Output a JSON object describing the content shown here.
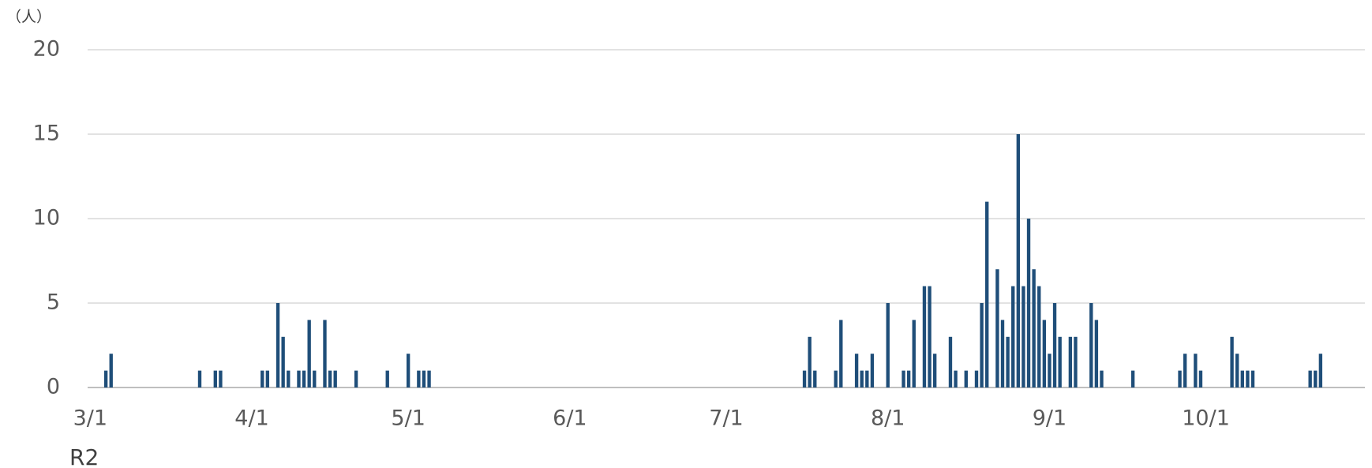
{
  "chart_data": {
    "type": "bar",
    "y_unit": "（人）",
    "x_note": "R2",
    "color": "#1f4e79",
    "grid": true,
    "ylim": [
      0,
      20
    ],
    "yticks": [
      0,
      5,
      10,
      15,
      20
    ],
    "categories": [
      "3/1",
      null,
      null,
      null,
      null,
      null,
      null,
      null,
      null,
      null,
      null,
      null,
      null,
      null,
      null,
      null,
      null,
      null,
      null,
      null,
      null,
      null,
      null,
      null,
      null,
      null,
      null,
      null,
      null,
      null,
      null,
      "4/1",
      null,
      null,
      null,
      null,
      null,
      null,
      null,
      null,
      null,
      null,
      null,
      null,
      null,
      null,
      null,
      null,
      null,
      null,
      null,
      null,
      null,
      null,
      null,
      null,
      null,
      null,
      null,
      null,
      null,
      "5/1",
      null,
      null,
      null,
      null,
      null,
      null,
      null,
      null,
      null,
      null,
      null,
      null,
      null,
      null,
      null,
      null,
      null,
      null,
      null,
      null,
      null,
      null,
      null,
      null,
      null,
      null,
      null,
      null,
      null,
      null,
      "6/1",
      null,
      null,
      null,
      null,
      null,
      null,
      null,
      null,
      null,
      null,
      null,
      null,
      null,
      null,
      null,
      null,
      null,
      null,
      null,
      null,
      null,
      null,
      null,
      null,
      null,
      null,
      null,
      null,
      null,
      "7/1",
      null,
      null,
      null,
      null,
      null,
      null,
      null,
      null,
      null,
      null,
      null,
      null,
      null,
      null,
      null,
      null,
      null,
      null,
      null,
      null,
      null,
      null,
      null,
      null,
      null,
      null,
      null,
      null,
      null,
      null,
      "8/1",
      null,
      null,
      null,
      null,
      null,
      null,
      null,
      null,
      null,
      null,
      null,
      null,
      null,
      null,
      null,
      null,
      null,
      null,
      null,
      null,
      null,
      null,
      null,
      null,
      null,
      null,
      null,
      null,
      null,
      null,
      "9/1",
      null,
      null,
      null,
      null,
      null,
      null,
      null,
      null,
      null,
      null,
      null,
      null,
      null,
      null,
      null,
      null,
      null,
      null,
      null,
      null,
      null,
      null,
      null,
      null,
      null,
      null,
      null,
      null,
      null,
      "10/1",
      null,
      null,
      null,
      null,
      null,
      null,
      null,
      null,
      null,
      null,
      null,
      null,
      null,
      null,
      null,
      null,
      null,
      null,
      null,
      null,
      null,
      null,
      null,
      null,
      null,
      null,
      null,
      null,
      null,
      null
    ],
    "values": [
      0,
      0,
      0,
      1,
      2,
      0,
      0,
      0,
      0,
      0,
      0,
      0,
      0,
      0,
      0,
      0,
      0,
      0,
      0,
      0,
      0,
      1,
      0,
      0,
      1,
      1,
      0,
      0,
      0,
      0,
      0,
      0,
      0,
      1,
      1,
      0,
      5,
      3,
      1,
      0,
      1,
      1,
      4,
      1,
      0,
      4,
      1,
      1,
      0,
      0,
      0,
      1,
      0,
      0,
      0,
      0,
      0,
      1,
      0,
      0,
      0,
      2,
      0,
      1,
      1,
      1,
      0,
      0,
      0,
      0,
      0,
      0,
      0,
      0,
      0,
      0,
      0,
      0,
      0,
      0,
      0,
      0,
      0,
      0,
      0,
      0,
      0,
      0,
      0,
      0,
      0,
      0,
      0,
      0,
      0,
      0,
      0,
      0,
      0,
      0,
      0,
      0,
      0,
      0,
      0,
      0,
      0,
      0,
      0,
      0,
      0,
      0,
      0,
      0,
      0,
      0,
      0,
      0,
      0,
      0,
      0,
      0,
      0,
      0,
      0,
      0,
      0,
      0,
      0,
      0,
      0,
      0,
      0,
      0,
      0,
      0,
      0,
      1,
      3,
      1,
      0,
      0,
      0,
      1,
      4,
      0,
      0,
      2,
      1,
      1,
      2,
      0,
      0,
      5,
      0,
      0,
      1,
      1,
      4,
      0,
      6,
      6,
      2,
      0,
      0,
      3,
      1,
      0,
      1,
      0,
      1,
      5,
      11,
      0,
      7,
      4,
      3,
      6,
      15,
      6,
      10,
      7,
      6,
      4,
      2,
      5,
      3,
      0,
      3,
      3,
      0,
      0,
      5,
      4,
      1,
      0,
      0,
      0,
      0,
      0,
      1,
      0,
      0,
      0,
      0,
      0,
      0,
      0,
      0,
      1,
      2,
      0,
      2,
      1,
      0,
      0,
      0,
      0,
      0,
      3,
      2,
      1,
      1,
      1,
      0,
      0,
      0,
      0,
      0,
      0,
      0,
      0,
      0,
      0,
      1,
      1,
      2,
      0,
      0,
      0,
      0,
      0,
      0,
      0,
      0
    ]
  }
}
